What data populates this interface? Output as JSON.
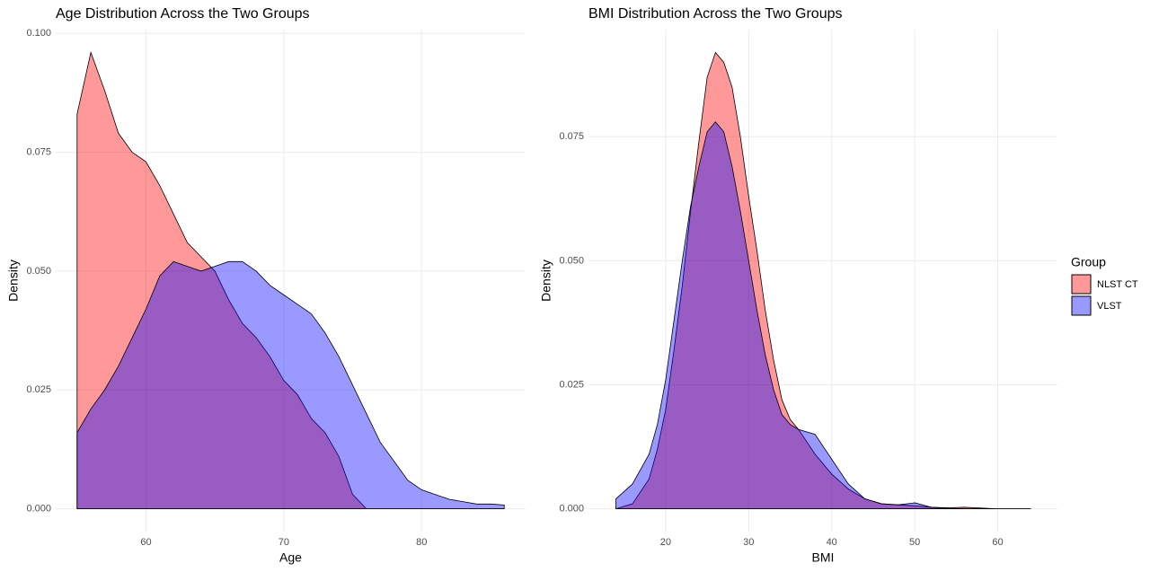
{
  "chart_data": [
    {
      "type": "density",
      "title": "Age Distribution Across the Two Groups",
      "xlabel": "Age",
      "ylabel": "Density",
      "x": [
        55,
        56,
        57,
        58,
        59,
        60,
        61,
        62,
        63,
        64,
        65,
        66,
        67,
        68,
        69,
        70,
        71,
        72,
        73,
        74,
        75,
        76,
        77,
        78,
        79,
        80,
        81,
        82,
        83,
        84,
        85,
        86
      ],
      "series": [
        {
          "color": "#ff0000",
          "values": [
            0.083,
            0.096,
            0.088,
            0.079,
            0.075,
            0.073,
            0.068,
            0.062,
            0.056,
            0.053,
            0.05,
            0.044,
            0.039,
            0.036,
            0.032,
            0.027,
            0.024,
            0.019,
            0.016,
            0.011,
            0.003,
            0,
            0,
            0,
            0,
            0,
            0,
            0,
            0,
            0,
            0,
            0
          ]
        },
        {
          "color": "#0000ff",
          "values": [
            0.016,
            0.021,
            0.025,
            0.03,
            0.036,
            0.042,
            0.049,
            0.052,
            0.051,
            0.05,
            0.051,
            0.052,
            0.052,
            0.05,
            0.047,
            0.045,
            0.043,
            0.041,
            0.037,
            0.032,
            0.026,
            0.02,
            0.014,
            0.01,
            0.006,
            0.004,
            0.003,
            0.002,
            0.0015,
            0.001,
            0.001,
            0.0008
          ]
        }
      ],
      "xlim": [
        53.45,
        87.55
      ],
      "ylim": [
        -0.0048,
        0.1008
      ],
      "xticks": [
        60,
        70,
        80
      ],
      "yticks": [
        {
          "value": 0,
          "label": "0.000"
        },
        {
          "value": 0.025,
          "label": "0.025"
        },
        {
          "value": 0.05,
          "label": "0.050"
        },
        {
          "value": 0.075,
          "label": "0.075"
        },
        {
          "value": 0.1,
          "label": "0.100"
        }
      ],
      "grid": true
    },
    {
      "type": "density",
      "title": "BMI Distribution Across the Two Groups",
      "xlabel": "BMI",
      "ylabel": "Density",
      "x": [
        14,
        16,
        18,
        19,
        20,
        21,
        22,
        23,
        24,
        25,
        26,
        27,
        28,
        29,
        30,
        31,
        32,
        33,
        34,
        35,
        36,
        38,
        40,
        42,
        44,
        46,
        48,
        50,
        52,
        54,
        56,
        60,
        64
      ],
      "series": [
        {
          "name": "NLST CT",
          "color": "#ff0000",
          "values": [
            0,
            0.001,
            0.006,
            0.012,
            0.02,
            0.032,
            0.045,
            0.06,
            0.074,
            0.087,
            0.092,
            0.09,
            0.085,
            0.075,
            0.063,
            0.052,
            0.04,
            0.03,
            0.022,
            0.018,
            0.016,
            0.011,
            0.007,
            0.004,
            0.002,
            0.001,
            0.0008,
            0.0006,
            0.0003,
            0.0002,
            0.0003,
            0,
            0
          ]
        },
        {
          "name": "VLST",
          "color": "#0000ff",
          "values": [
            0.002,
            0.005,
            0.011,
            0.017,
            0.026,
            0.038,
            0.05,
            0.061,
            0.069,
            0.076,
            0.078,
            0.076,
            0.069,
            0.06,
            0.05,
            0.04,
            0.031,
            0.024,
            0.019,
            0.017,
            0.016,
            0.015,
            0.01,
            0.005,
            0.002,
            0.001,
            0.0008,
            0.0012,
            0.0003,
            0.0001,
            0,
            0,
            0
          ]
        }
      ],
      "xlim": [
        10.7,
        67.2
      ],
      "ylim": [
        -0.0046,
        0.0966
      ],
      "xticks": [
        20,
        30,
        40,
        50,
        60
      ],
      "yticks": [
        {
          "value": 0,
          "label": "0.000"
        },
        {
          "value": 0.025,
          "label": "0.025"
        },
        {
          "value": 0.05,
          "label": "0.050"
        },
        {
          "value": 0.075,
          "label": "0.075"
        }
      ],
      "grid": true,
      "legend_title": "Group"
    }
  ]
}
